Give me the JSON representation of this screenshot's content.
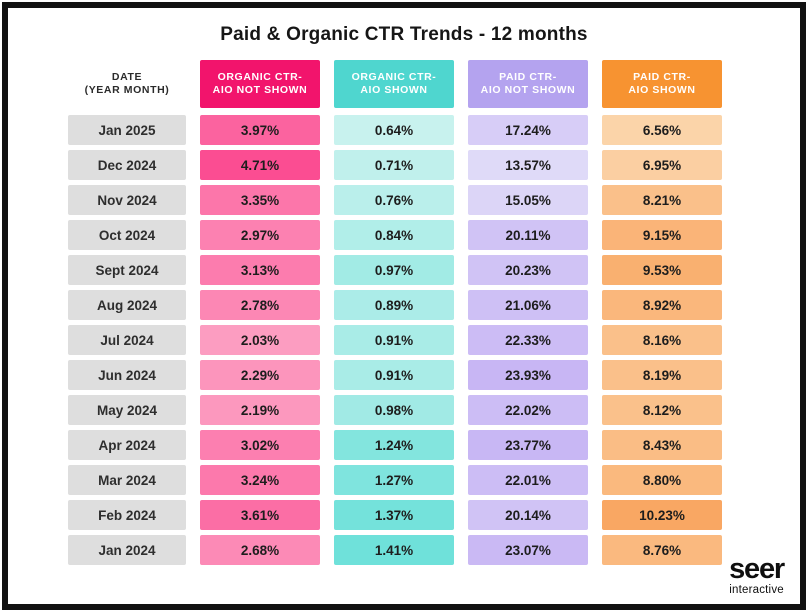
{
  "title": "Paid & Organic CTR Trends - 12 months",
  "logo": {
    "primary": "seer",
    "secondary": "interactive"
  },
  "colors": {
    "frame_border": "#111111",
    "background": "#ffffff",
    "date_cell_bg": "#dedede",
    "value_text": "#1d1d1d"
  },
  "table": {
    "date_header_line1": "DATE",
    "date_header_line2": "(YEAR MONTH)",
    "columns": [
      {
        "id": "organic-ctr-aio-not-shown",
        "label_line1": "ORGANIC CTR-",
        "label_line2": "AIO NOT SHOWN",
        "header_bg": "#f2146c",
        "cell_min": "#fc9dc1",
        "cell_max": "#fb4d92"
      },
      {
        "id": "organic-ctr-aio-shown",
        "label_line1": "ORGANIC CTR-",
        "label_line2": "AIO SHOWN",
        "header_bg": "#4fd6cf",
        "cell_min": "#c8f2ee",
        "cell_max": "#6fe1da"
      },
      {
        "id": "paid-ctr-aio-not-shown",
        "label_line1": "PAID CTR-",
        "label_line2": "AIO NOT SHOWN",
        "header_bg": "#b4a3ef",
        "cell_min": "#dfdaf8",
        "cell_max": "#c8b6f4"
      },
      {
        "id": "paid-ctr-aio-shown",
        "label_line1": "PAID CTR-",
        "label_line2": "AIO SHOWN",
        "header_bg": "#f79331",
        "cell_min": "#fbd4a9",
        "cell_max": "#f9a763"
      }
    ]
  },
  "chart_data": {
    "type": "heatmap",
    "title": "Paid & Organic CTR Trends - 12 months",
    "value_format": "percent",
    "categories": [
      "Jan 2025",
      "Dec 2024",
      "Nov 2024",
      "Oct 2024",
      "Sept 2024",
      "Aug 2024",
      "Jul 2024",
      "Jun 2024",
      "May 2024",
      "Apr 2024",
      "Mar 2024",
      "Feb 2024",
      "Jan 2024"
    ],
    "series": [
      {
        "name": "Organic CTR - AIO Not Shown",
        "values": [
          3.97,
          4.71,
          3.35,
          2.97,
          3.13,
          2.78,
          2.03,
          2.29,
          2.19,
          3.02,
          3.24,
          3.61,
          2.68
        ]
      },
      {
        "name": "Organic CTR - AIO Shown",
        "values": [
          0.64,
          0.71,
          0.76,
          0.84,
          0.97,
          0.89,
          0.91,
          0.91,
          0.98,
          1.24,
          1.27,
          1.37,
          1.41
        ]
      },
      {
        "name": "Paid CTR - AIO Not Shown",
        "values": [
          17.24,
          13.57,
          15.05,
          20.11,
          20.23,
          21.06,
          22.33,
          23.93,
          22.02,
          23.77,
          22.01,
          20.14,
          23.07
        ]
      },
      {
        "name": "Paid CTR - AIO Shown",
        "values": [
          6.56,
          6.95,
          8.21,
          9.15,
          9.53,
          8.92,
          8.16,
          8.19,
          8.12,
          8.43,
          8.8,
          10.23,
          8.76
        ]
      }
    ]
  }
}
